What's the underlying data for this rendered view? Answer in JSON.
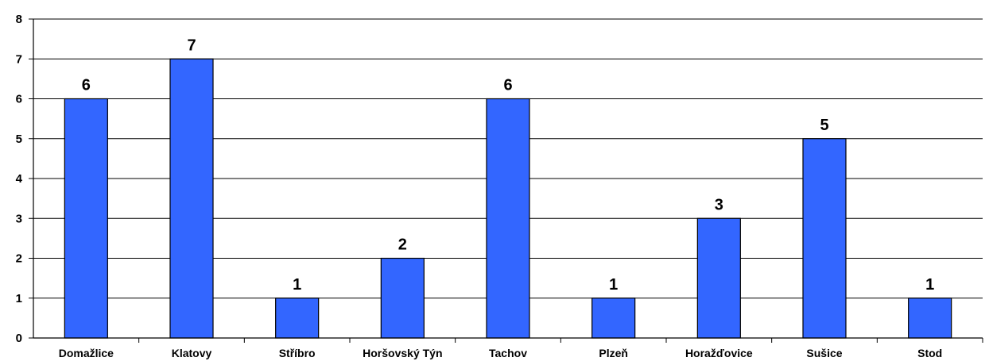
{
  "chart_data": {
    "type": "bar",
    "categories": [
      "Domažlice",
      "Klatovy",
      "Stříbro",
      "Horšovský Týn",
      "Tachov",
      "Plzeň",
      "Horažďovice",
      "Sušice",
      "Stod"
    ],
    "values": [
      6,
      7,
      1,
      2,
      6,
      1,
      3,
      5,
      1
    ],
    "data_labels": [
      "6",
      "7",
      "1",
      "2",
      "6",
      "1",
      "3",
      "5",
      "1"
    ],
    "y_ticks": [
      "0",
      "1",
      "2",
      "3",
      "4",
      "5",
      "6",
      "7",
      "8"
    ],
    "ylim": [
      0,
      8
    ],
    "grid": true,
    "legend": "none",
    "bar_color": "#3366ff",
    "title": "",
    "xlabel": "",
    "ylabel": ""
  }
}
